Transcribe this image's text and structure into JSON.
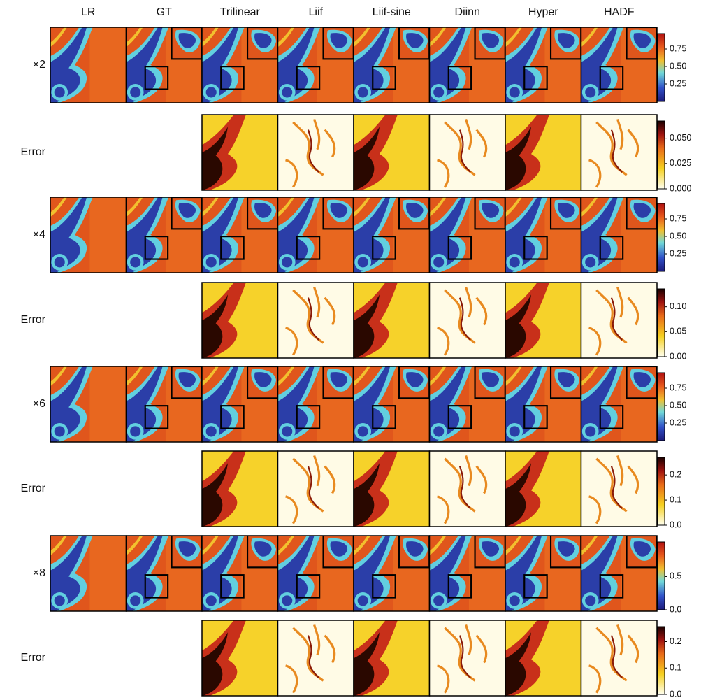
{
  "columns": [
    "LR",
    "GT",
    "Trilinear",
    "Liif",
    "Liif-sine",
    "Diinn",
    "Hyper",
    "HADF"
  ],
  "rows": [
    {
      "label": "×2",
      "colormap": "jet",
      "colorbar": {
        "lim": [
          0,
          0.97
        ],
        "ticks": [
          0.25,
          {
            "value": 0.5,
            "label": "0.50"
          },
          0.75
        ]
      }
    },
    {
      "label": "Error",
      "colormap": "hot_r",
      "colorbar": {
        "lim": [
          0,
          0.067
        ],
        "ticks": [
          {
            "value": 0,
            "label": "0.000"
          },
          0.025,
          {
            "value": 0.05,
            "label": "0.050"
          }
        ]
      }
    },
    {
      "label": "×4",
      "colormap": "jet",
      "colorbar": {
        "lim": [
          0,
          0.97
        ],
        "ticks": [
          0.25,
          {
            "value": 0.5,
            "label": "0.50"
          },
          0.75
        ]
      }
    },
    {
      "label": "Error",
      "colormap": "hot_r",
      "colorbar": {
        "lim": [
          0,
          0.136
        ],
        "ticks": [
          {
            "value": 0,
            "label": "0.00"
          },
          0.05,
          {
            "value": 0.1,
            "label": "0.10"
          }
        ]
      }
    },
    {
      "label": "×6",
      "colormap": "jet",
      "colorbar": {
        "lim": [
          0,
          0.97
        ],
        "ticks": [
          0.25,
          {
            "value": 0.5,
            "label": "0.50"
          },
          0.75
        ]
      }
    },
    {
      "label": "Error",
      "colormap": "hot_r",
      "colorbar": {
        "lim": [
          0,
          0.27
        ],
        "ticks": [
          {
            "value": 0,
            "label": "0.0"
          },
          0.1,
          0.2
        ]
      }
    },
    {
      "label": "×8",
      "colormap": "jet",
      "colorbar": {
        "lim": [
          0,
          1.02
        ],
        "ticks": [
          {
            "value": 0,
            "label": "0.0"
          },
          0.5
        ]
      }
    },
    {
      "label": "Error",
      "colormap": "hot_r",
      "colorbar": {
        "lim": [
          0,
          0.257
        ],
        "ticks": [
          {
            "value": 0,
            "label": "0.0"
          },
          0.1,
          0.2
        ]
      }
    }
  ]
}
